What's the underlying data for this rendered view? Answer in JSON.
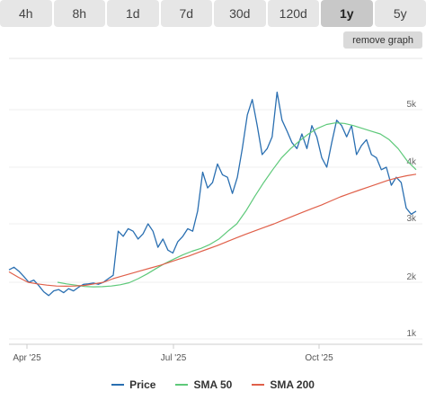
{
  "tabs": [
    {
      "label": "4h",
      "active": false
    },
    {
      "label": "8h",
      "active": false
    },
    {
      "label": "1d",
      "active": false
    },
    {
      "label": "7d",
      "active": false
    },
    {
      "label": "30d",
      "active": false
    },
    {
      "label": "120d",
      "active": false
    },
    {
      "label": "1y",
      "active": true
    },
    {
      "label": "5y",
      "active": false
    }
  ],
  "remove_graph_label": "remove graph",
  "chart_data": {
    "type": "line",
    "x_ticks": [
      "Apr '25",
      "Jul '25",
      "Oct '25"
    ],
    "y_ticks": [
      "1k",
      "2k",
      "3k",
      "4k",
      "5k"
    ],
    "ylim": [
      1000,
      5500
    ],
    "y_scale": "log",
    "grid": true,
    "legend_position": "bottom",
    "series": [
      {
        "name": "Price",
        "color": "#2a6fb1",
        "values": [
          2180,
          2220,
          2160,
          2080,
          2000,
          2030,
          1920,
          1780,
          1700,
          1800,
          1830,
          1760,
          1850,
          1800,
          1880,
          1950,
          1960,
          1980,
          1950,
          2000,
          2050,
          2100,
          2850,
          2750,
          2900,
          2850,
          2700,
          2800,
          3000,
          2850,
          2550,
          2700,
          2500,
          2450,
          2650,
          2750,
          2900,
          2850,
          3200,
          3900,
          3600,
          3700,
          4050,
          3850,
          3800,
          3500,
          3800,
          4300,
          4900,
          5200,
          4700,
          4200,
          4300,
          4500,
          5350,
          4800,
          4600,
          4400,
          4300,
          4550,
          4300,
          4700,
          4500,
          4150,
          4000,
          4400,
          4800,
          4700,
          4500,
          4700,
          4200,
          4350,
          4450,
          4200,
          4150,
          3950,
          4000,
          3650,
          3800,
          3700,
          3250,
          3150,
          3200
        ]
      },
      {
        "name": "SMA 50",
        "color": "#5ec97a",
        "values": [
          2000,
          1960,
          1930,
          1900,
          1890,
          1895,
          1910,
          1940,
          1990,
          2050,
          2120,
          2200,
          2280,
          2350,
          2420,
          2480,
          2530,
          2600,
          2700,
          2850,
          3000,
          3200,
          3450,
          3700,
          3950,
          4150,
          4300,
          4430,
          4550,
          4650,
          4720,
          4750,
          4740,
          4700,
          4650,
          4600,
          4550,
          4450,
          4300,
          4100,
          3950
        ]
      },
      {
        "name": "SMA 200",
        "color": "#e0604a",
        "values": [
          2150,
          2070,
          2000,
          1960,
          1930,
          1910,
          1905,
          1910,
          1925,
          1960,
          2000,
          2050,
          2090,
          2130,
          2170,
          2210,
          2250,
          2300,
          2350,
          2400,
          2460,
          2520,
          2580,
          2650,
          2720,
          2790,
          2860,
          2930,
          3000,
          3060,
          3120,
          3180,
          3240,
          3300,
          3370,
          3440,
          3500,
          3560,
          3620,
          3680,
          3740,
          3790,
          3830,
          3860
        ]
      }
    ]
  }
}
